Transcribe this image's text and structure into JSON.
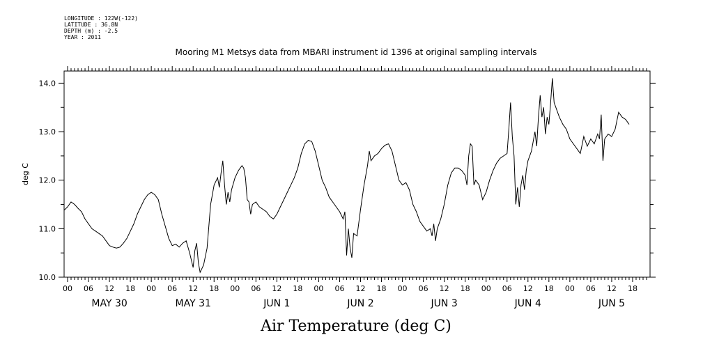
{
  "metadata": {
    "longitude": "LONGITUDE : 122W(-122)",
    "latitude": "LATITUDE : 36.8N",
    "depth": "DEPTH (m) : -2.5",
    "year": "YEAR : 2011"
  },
  "chart_data": {
    "type": "line",
    "title": "Mooring M1 Metsys data from MBARI instrument id 1396 at original sampling intervals",
    "xlabel": "Air Temperature (deg C)",
    "ylabel": "deg C",
    "ylim": [
      10.0,
      14.25
    ],
    "yticks": [
      "10.0",
      "11.0",
      "12.0",
      "13.0",
      "14.0"
    ],
    "xlim_hours": [
      -1,
      167
    ],
    "hour_ticks": [
      "00",
      "06",
      "12",
      "18",
      "00",
      "06",
      "12",
      "18",
      "00",
      "06",
      "12",
      "18",
      "00",
      "06",
      "12",
      "18",
      "00",
      "06",
      "12",
      "18",
      "00",
      "06",
      "12",
      "18",
      "00",
      "06",
      "12",
      "18"
    ],
    "day_labels": [
      "MAY 30",
      "MAY 31",
      "JUN  1",
      "JUN  2",
      "JUN  3",
      "JUN  4",
      "JUN  5"
    ],
    "series": [
      {
        "name": "Air Temperature",
        "points": [
          [
            -1,
            11.38
          ],
          [
            0,
            11.45
          ],
          [
            1,
            11.55
          ],
          [
            2,
            11.5
          ],
          [
            3,
            11.42
          ],
          [
            4,
            11.35
          ],
          [
            5,
            11.2
          ],
          [
            6,
            11.1
          ],
          [
            7,
            11.0
          ],
          [
            8,
            10.95
          ],
          [
            9,
            10.9
          ],
          [
            10,
            10.85
          ],
          [
            11,
            10.75
          ],
          [
            12,
            10.65
          ],
          [
            13,
            10.62
          ],
          [
            14,
            10.6
          ],
          [
            15,
            10.62
          ],
          [
            16,
            10.7
          ],
          [
            17,
            10.8
          ],
          [
            18,
            10.95
          ],
          [
            19,
            11.1
          ],
          [
            20,
            11.3
          ],
          [
            21,
            11.45
          ],
          [
            22,
            11.6
          ],
          [
            23,
            11.7
          ],
          [
            24,
            11.75
          ],
          [
            25,
            11.7
          ],
          [
            26,
            11.6
          ],
          [
            27,
            11.3
          ],
          [
            28,
            11.05
          ],
          [
            29,
            10.8
          ],
          [
            30,
            10.65
          ],
          [
            31,
            10.68
          ],
          [
            32,
            10.62
          ],
          [
            33,
            10.7
          ],
          [
            34,
            10.75
          ],
          [
            35,
            10.5
          ],
          [
            36,
            10.2
          ],
          [
            36.5,
            10.55
          ],
          [
            37,
            10.7
          ],
          [
            37.5,
            10.3
          ],
          [
            38,
            10.1
          ],
          [
            39,
            10.25
          ],
          [
            40,
            10.6
          ],
          [
            41,
            11.5
          ],
          [
            42,
            11.9
          ],
          [
            43,
            12.05
          ],
          [
            43.5,
            11.85
          ],
          [
            44,
            12.15
          ],
          [
            44.5,
            12.4
          ],
          [
            45,
            11.9
          ],
          [
            45.5,
            11.5
          ],
          [
            46,
            11.75
          ],
          [
            46.5,
            11.55
          ],
          [
            47,
            11.8
          ],
          [
            48,
            12.05
          ],
          [
            49,
            12.2
          ],
          [
            50,
            12.3
          ],
          [
            50.5,
            12.25
          ],
          [
            51,
            12.05
          ],
          [
            51.5,
            11.6
          ],
          [
            52,
            11.55
          ],
          [
            52.5,
            11.3
          ],
          [
            53,
            11.5
          ],
          [
            54,
            11.55
          ],
          [
            55,
            11.45
          ],
          [
            56,
            11.4
          ],
          [
            57,
            11.35
          ],
          [
            58,
            11.25
          ],
          [
            59,
            11.2
          ],
          [
            60,
            11.3
          ],
          [
            61,
            11.45
          ],
          [
            62,
            11.6
          ],
          [
            63,
            11.75
          ],
          [
            64,
            11.9
          ],
          [
            65,
            12.05
          ],
          [
            66,
            12.25
          ],
          [
            67,
            12.55
          ],
          [
            68,
            12.75
          ],
          [
            69,
            12.82
          ],
          [
            70,
            12.8
          ],
          [
            71,
            12.6
          ],
          [
            72,
            12.3
          ],
          [
            73,
            12.0
          ],
          [
            74,
            11.85
          ],
          [
            75,
            11.65
          ],
          [
            76,
            11.55
          ],
          [
            77,
            11.45
          ],
          [
            78,
            11.35
          ],
          [
            79,
            11.2
          ],
          [
            79.5,
            11.35
          ],
          [
            80,
            10.45
          ],
          [
            80.5,
            11.0
          ],
          [
            81,
            10.6
          ],
          [
            81.5,
            10.4
          ],
          [
            82,
            10.9
          ],
          [
            83,
            10.85
          ],
          [
            84,
            11.4
          ],
          [
            85,
            11.9
          ],
          [
            86,
            12.3
          ],
          [
            86.5,
            12.6
          ],
          [
            87,
            12.4
          ],
          [
            88,
            12.5
          ],
          [
            89,
            12.55
          ],
          [
            90,
            12.65
          ],
          [
            91,
            12.72
          ],
          [
            92,
            12.75
          ],
          [
            93,
            12.6
          ],
          [
            94,
            12.3
          ],
          [
            95,
            12.0
          ],
          [
            96,
            11.9
          ],
          [
            97,
            11.95
          ],
          [
            98,
            11.8
          ],
          [
            99,
            11.5
          ],
          [
            100,
            11.35
          ],
          [
            101,
            11.15
          ],
          [
            102,
            11.05
          ],
          [
            103,
            10.95
          ],
          [
            104,
            11.0
          ],
          [
            104.5,
            10.85
          ],
          [
            105,
            11.1
          ],
          [
            105.5,
            10.75
          ],
          [
            106,
            11.0
          ],
          [
            107,
            11.2
          ],
          [
            108,
            11.5
          ],
          [
            109,
            11.9
          ],
          [
            110,
            12.15
          ],
          [
            111,
            12.25
          ],
          [
            112,
            12.25
          ],
          [
            113,
            12.2
          ],
          [
            114,
            12.1
          ],
          [
            114.5,
            11.9
          ],
          [
            115,
            12.5
          ],
          [
            115.5,
            12.75
          ],
          [
            116,
            12.7
          ],
          [
            116.5,
            11.9
          ],
          [
            117,
            12.0
          ],
          [
            118,
            11.9
          ],
          [
            119,
            11.6
          ],
          [
            120,
            11.75
          ],
          [
            121,
            12.0
          ],
          [
            122,
            12.2
          ],
          [
            123,
            12.35
          ],
          [
            124,
            12.45
          ],
          [
            125,
            12.5
          ],
          [
            126,
            12.55
          ],
          [
            126.5,
            13.05
          ],
          [
            127,
            13.6
          ],
          [
            127.5,
            12.9
          ],
          [
            128,
            12.5
          ],
          [
            128.5,
            11.5
          ],
          [
            129,
            11.85
          ],
          [
            129.5,
            11.45
          ],
          [
            130,
            11.9
          ],
          [
            130.5,
            12.1
          ],
          [
            131,
            11.8
          ],
          [
            131.5,
            12.2
          ],
          [
            132,
            12.4
          ],
          [
            133,
            12.6
          ],
          [
            134,
            13.0
          ],
          [
            134.5,
            12.7
          ],
          [
            135,
            13.3
          ],
          [
            135.5,
            13.75
          ],
          [
            136,
            13.3
          ],
          [
            136.5,
            13.5
          ],
          [
            137,
            12.95
          ],
          [
            137.5,
            13.3
          ],
          [
            138,
            13.15
          ],
          [
            138.5,
            13.6
          ],
          [
            139,
            14.1
          ],
          [
            139.5,
            13.6
          ],
          [
            140,
            13.5
          ],
          [
            141,
            13.3
          ],
          [
            142,
            13.15
          ],
          [
            143,
            13.05
          ],
          [
            144,
            12.85
          ],
          [
            145,
            12.75
          ],
          [
            146,
            12.65
          ],
          [
            147,
            12.55
          ],
          [
            148,
            12.9
          ],
          [
            149,
            12.7
          ],
          [
            150,
            12.85
          ],
          [
            151,
            12.75
          ],
          [
            152,
            12.95
          ],
          [
            152.5,
            12.85
          ],
          [
            153,
            13.35
          ],
          [
            153.5,
            12.4
          ],
          [
            154,
            12.85
          ],
          [
            155,
            12.95
          ],
          [
            156,
            12.9
          ],
          [
            157,
            13.05
          ],
          [
            158,
            13.4
          ],
          [
            159,
            13.3
          ],
          [
            160,
            13.25
          ],
          [
            161,
            13.15
          ]
        ]
      }
    ]
  }
}
